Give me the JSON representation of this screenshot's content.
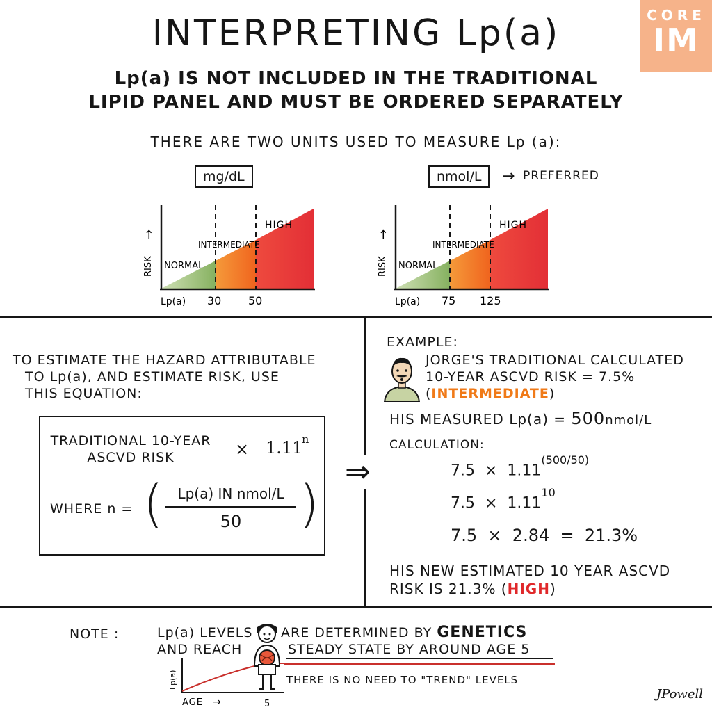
{
  "title": "INTERPRETING Lp(a)",
  "subtitle_line1": "Lp(a) IS NOT INCLUDED IN THE TRADITIONAL",
  "subtitle_line2": "LIPID PANEL AND MUST BE ORDERED SEPARATELY",
  "logo": {
    "line1": "CORE",
    "line2": "IM",
    "color": "#f6b38a"
  },
  "units": {
    "heading": "THERE ARE TWO UNITS USED TO MEASURE Lp (a):",
    "preferred_label": "PREFERRED",
    "charts": [
      {
        "unit": "mg/dL",
        "y_label": "RISK",
        "x_label": "Lp(a)",
        "cutoffs": [
          "30",
          "50"
        ],
        "zones": [
          "NORMAL",
          "INTERMEDIATE",
          "HIGH"
        ]
      },
      {
        "unit": "nmol/L",
        "y_label": "RISK",
        "x_label": "Lp(a)",
        "cutoffs": [
          "75",
          "125"
        ],
        "zones": [
          "NORMAL",
          "INTERMEDIATE",
          "HIGH"
        ]
      }
    ],
    "zone_colors": {
      "normal": "#9fc27a",
      "intermediate": "#f58a2e",
      "high": "#e8373a"
    }
  },
  "equation": {
    "intro": [
      "TO ESTIMATE THE HAZARD ATTRIBUTABLE",
      "TO Lp(a), AND ESTIMATE RISK, USE",
      "THIS EQUATION:"
    ],
    "risk_line1": "TRADITIONAL 10-YEAR",
    "risk_line2": "ASCVD RISK",
    "times": "×",
    "base": "1.11",
    "exponent": "n",
    "where": "WHERE n =",
    "numerator": "Lp(a) IN nmol/L",
    "denominator": "50"
  },
  "arrow": "⇒",
  "example": {
    "heading": "EXAMPLE:",
    "line1": "JORGE'S TRADITIONAL CALCULATED",
    "line2": "10-YEAR ASCVD RISK = 7.5%",
    "category1": "INTERMEDIATE",
    "measured_prefix": "HIS MEASURED Lp(a) =",
    "measured_value": "500",
    "measured_unit": "nmol/L",
    "calc_label": "CALCULATION:",
    "calc1_left": "7.5  ×  1.11",
    "calc1_exp": "(500/50)",
    "calc2_left": "7.5  ×  1.11",
    "calc2_exp": "10",
    "calc3": "7.5  ×  2.84  =  21.3%",
    "result_line1": "HIS NEW ESTIMATED 10 YEAR ASCVD",
    "result_line2_prefix": "RISK IS 21.3%",
    "category2": "HIGH"
  },
  "note": {
    "label": "NOTE :",
    "line1_a": "Lp(a) LEVELS",
    "line1_b": "ARE DETERMINED BY",
    "line1_c": "GENETICS",
    "line2_a": "AND REACH",
    "line2_b": "STEADY STATE BY AROUND AGE 5",
    "line3": "THERE IS NO NEED TO \"TREND\" LEVELS",
    "y_label": "Lp(a)",
    "x_label": "AGE",
    "x_tick": "5"
  },
  "signature": "JPowell"
}
